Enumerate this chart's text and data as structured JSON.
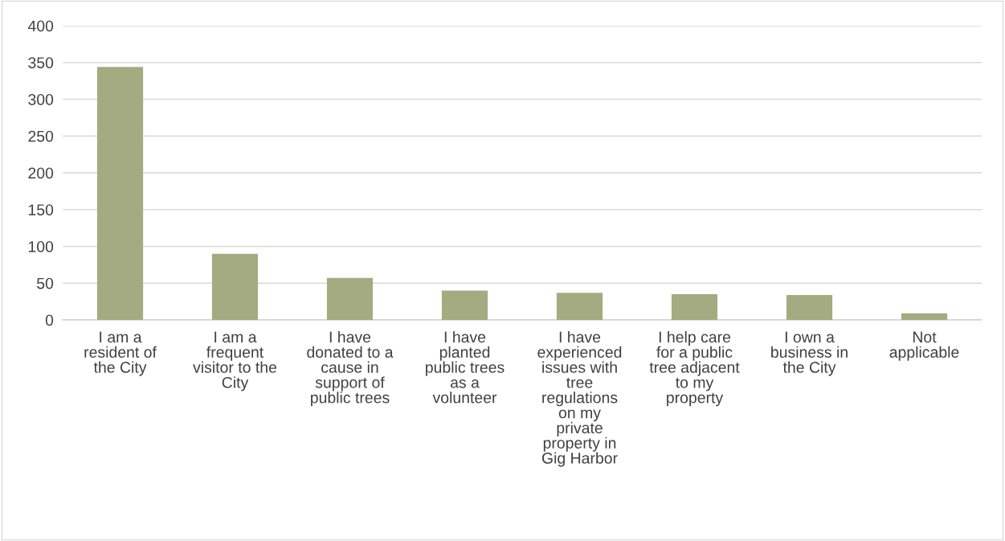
{
  "chart_data": {
    "type": "bar",
    "categories": [
      "I am a\nresident of\nthe City",
      "I am a\nfrequent\nvisitor to the\nCity",
      "I have\ndonated to a\ncause in\nsupport of\npublic trees",
      "I have\nplanted\npublic trees\nas a\nvolunteer",
      "I have\nexperienced\nissues with\ntree\nregulations\non my\nprivate\nproperty in\nGig Harbor",
      "I help care\nfor a public\ntree adjacent\nto my\nproperty",
      "I own a\nbusiness in\nthe City",
      "Not\napplicable"
    ],
    "values": [
      344,
      90,
      57,
      40,
      37,
      35,
      34,
      9
    ],
    "color": "#a5ab80",
    "ylim": [
      0,
      400
    ],
    "yticks": [
      0,
      50,
      100,
      150,
      200,
      250,
      300,
      350,
      400
    ],
    "grid": "y"
  }
}
